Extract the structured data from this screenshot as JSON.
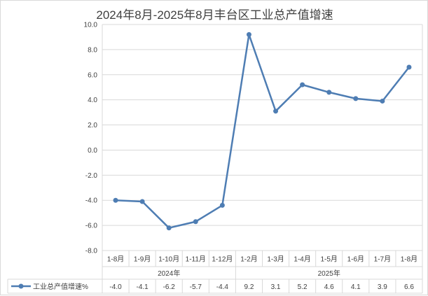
{
  "chart_data": {
    "type": "line",
    "title": "2024年8月-2025年8月丰台区工业总产值增速",
    "categories": [
      "1-8月",
      "1-9月",
      "1-10月",
      "1-11月",
      "1-12月",
      "1-2月",
      "1-3月",
      "1-4月",
      "1-5月",
      "1-6月",
      "1-7月",
      "1-8月"
    ],
    "groups": [
      {
        "label": "2024年",
        "span": 5
      },
      {
        "label": "2025年",
        "span": 7
      }
    ],
    "series": [
      {
        "name": "工业总产值增速%",
        "color": "#4e7db3",
        "values": [
          -4.0,
          -4.1,
          -6.2,
          -5.7,
          -4.4,
          9.2,
          3.1,
          5.2,
          4.6,
          4.1,
          3.9,
          6.6
        ],
        "labels": [
          "-4.0",
          "-4.1",
          "-6.2",
          "-5.7",
          "-4.4",
          "9.2",
          "3.1",
          "5.2",
          "4.6",
          "4.1",
          "3.9",
          "6.6"
        ]
      }
    ],
    "ylim": [
      -8.0,
      10.0
    ],
    "yticks": [
      "10.0",
      "8.0",
      "6.0",
      "4.0",
      "2.0",
      "0.0",
      "-2.0",
      "-4.0",
      "-6.0",
      "-8.0"
    ],
    "grid": true,
    "legend": "data-table-left"
  }
}
